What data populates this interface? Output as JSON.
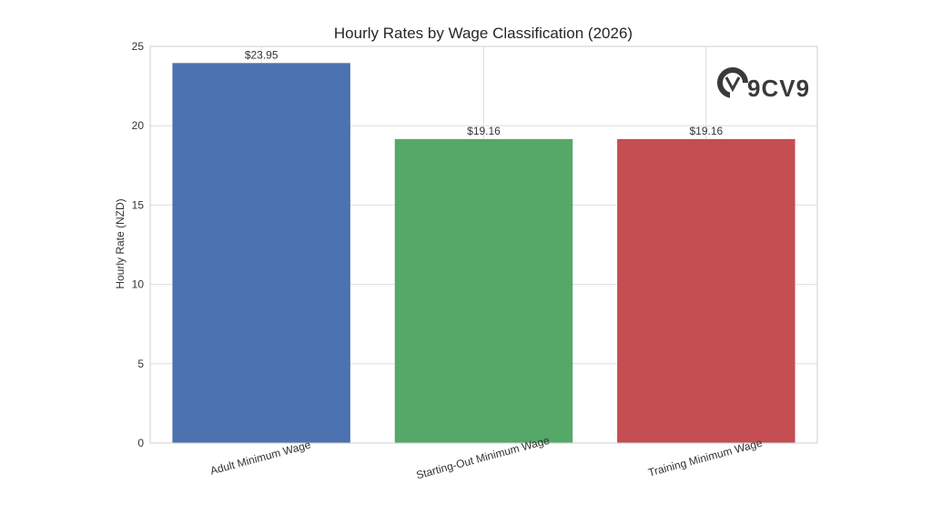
{
  "chart_data": {
    "type": "bar",
    "title": "Hourly Rates by Wage Classification (2026)",
    "xlabel": "",
    "ylabel": "Hourly Rate (NZD)",
    "categories": [
      "Adult Minimum Wage",
      "Starting-Out Minimum Wage",
      "Training Minimum Wage"
    ],
    "values": [
      23.95,
      19.16,
      19.16
    ],
    "data_labels": [
      "$23.95",
      "$19.16",
      "$19.16"
    ],
    "colors": [
      "#4c72b0",
      "#55a868",
      "#c44e52"
    ],
    "ylim": [
      0,
      25
    ],
    "yticks": [
      0,
      5,
      10,
      15,
      20,
      25
    ],
    "grid": true
  },
  "watermark": {
    "text": "9CV9",
    "icon": "9cv9-logo-icon"
  }
}
